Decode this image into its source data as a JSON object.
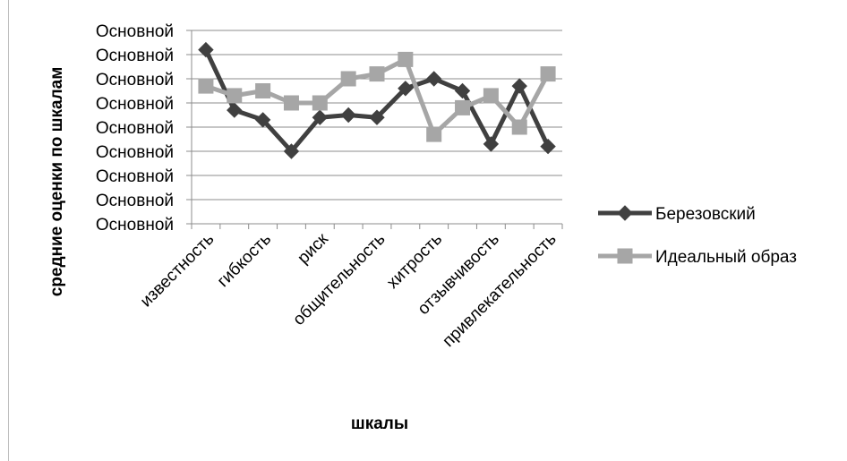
{
  "chart_data": {
    "type": "line",
    "xlabel": "шкалы",
    "ylabel": "средние оценки по шкалам",
    "y_tick_labels": [
      "Основной",
      "Основной",
      "Основной",
      "Основной",
      "Основной",
      "Основной",
      "Основной",
      "Основной",
      "Основной"
    ],
    "ylim": [
      0,
      8
    ],
    "grid": true,
    "legend_position": "right",
    "categories": [
      "известность",
      "",
      "гибкость",
      "",
      "риск",
      "",
      "общительность",
      "",
      "хитрость",
      "",
      "отзывчивость",
      "",
      "привлекательность"
    ],
    "series": [
      {
        "name": "Березовский",
        "color": "#404040",
        "marker": "diamond",
        "values": [
          7.2,
          4.7,
          4.3,
          3.0,
          4.4,
          4.5,
          4.4,
          5.6,
          6.0,
          5.5,
          3.3,
          5.7,
          3.2
        ]
      },
      {
        "name": "Идеальный образ",
        "color": "#a6a6a6",
        "marker": "square",
        "values": [
          5.7,
          5.3,
          5.5,
          5.0,
          5.0,
          6.0,
          6.2,
          6.8,
          3.7,
          4.8,
          5.3,
          4.0,
          6.2
        ]
      }
    ]
  }
}
